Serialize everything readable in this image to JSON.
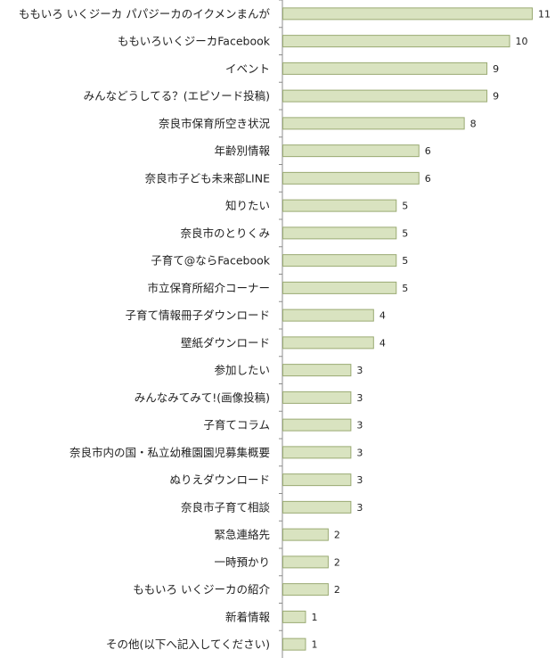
{
  "chart_data": {
    "type": "bar",
    "orientation": "horizontal",
    "categories": [
      "ももいろ いくジーカ パパジーカのイクメンまんが",
      "ももいろいくジーカFacebook",
      "イベント",
      "みんなどうしてる？(エピソード投稿)",
      "奈良市保育所空き状況",
      "年齢別情報",
      "奈良市子ども未来部LINE",
      "知りたい",
      "奈良市のとりくみ",
      "子育て@ならFacebook",
      "市立保育所紹介コーナー",
      "子育て情報冊子ダウンロード",
      "壁紙ダウンロード",
      "参加したい",
      "みんなみてみて!(画像投稿)",
      "子育てコラム",
      "奈良市内の国・私立幼稚園園児募集概要",
      "ぬりえダウンロード",
      "奈良市子育て相談",
      "緊急連絡先",
      "一時預かり",
      "ももいろ いくジーカの紹介",
      "新着情報",
      "その他(以下へ記入してください)"
    ],
    "values": [
      11,
      10,
      9,
      9,
      8,
      6,
      6,
      5,
      5,
      5,
      5,
      4,
      4,
      3,
      3,
      3,
      3,
      3,
      3,
      2,
      2,
      2,
      1,
      1
    ],
    "xlim": [
      0,
      11
    ],
    "grid": false,
    "legend": "none",
    "bar_color": "#d9e3c0",
    "bar_border_color": "#9aaa73",
    "axis_color": "#8c8c8c"
  }
}
